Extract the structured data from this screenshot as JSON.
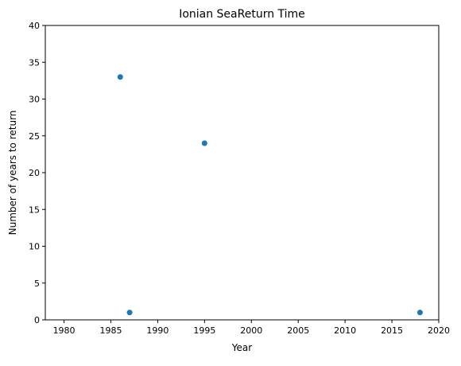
{
  "chart_data": {
    "type": "scatter",
    "title": "Ionian SeaReturn Time",
    "xlabel": "Year",
    "ylabel": "Number of years to return",
    "xlim": [
      1978,
      2020
    ],
    "ylim": [
      0,
      40
    ],
    "xticks": [
      1980,
      1985,
      1990,
      1995,
      2000,
      2005,
      2010,
      2015,
      2020
    ],
    "yticks": [
      0,
      5,
      10,
      15,
      20,
      25,
      30,
      35,
      40
    ],
    "grid": false,
    "series": [
      {
        "color": "#1f77b4",
        "points": [
          {
            "x": 1986,
            "y": 33
          },
          {
            "x": 1987,
            "y": 1
          },
          {
            "x": 1995,
            "y": 24
          },
          {
            "x": 2018,
            "y": 1
          }
        ]
      }
    ]
  }
}
